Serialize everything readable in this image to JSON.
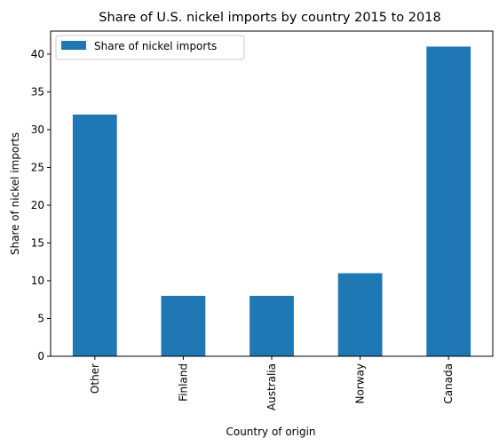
{
  "chart_data": {
    "type": "bar",
    "title": "Share of U.S. nickel imports by country 2015 to 2018",
    "xlabel": "Country of origin",
    "ylabel": "Share of nickel imports",
    "categories": [
      "Other",
      "Finland",
      "Australia",
      "Norway",
      "Canada"
    ],
    "series": [
      {
        "name": "Share of nickel imports",
        "values": [
          32,
          8,
          8,
          11,
          41
        ],
        "color": "#1f77b4"
      }
    ],
    "ylim": [
      0,
      43.05
    ],
    "yticks": [
      0,
      5,
      10,
      15,
      20,
      25,
      30,
      35,
      40
    ],
    "legend": "top-left",
    "grid": false
  }
}
